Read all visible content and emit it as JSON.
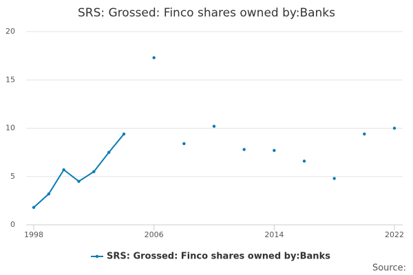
{
  "chart_data": {
    "type": "line",
    "title": "SRS: Grossed: Finco shares owned by:Banks",
    "x": [
      1998,
      1999,
      2000,
      2001,
      2002,
      2003,
      2004,
      2005,
      2006,
      2007,
      2008,
      2009,
      2010,
      2011,
      2012,
      2013,
      2014,
      2015,
      2016,
      2017,
      2018,
      2019,
      2020,
      2021,
      2022
    ],
    "series": [
      {
        "name": "SRS: Grossed: Finco shares owned by:Banks",
        "color": "#0a7bb5",
        "values": [
          1.8,
          3.2,
          5.7,
          4.5,
          5.5,
          7.5,
          9.4,
          null,
          17.3,
          null,
          8.4,
          null,
          10.2,
          null,
          7.8,
          null,
          7.7,
          null,
          6.6,
          null,
          4.8,
          null,
          9.4,
          null,
          10.0
        ]
      }
    ],
    "xlim": [
      1998,
      2022
    ],
    "xticks": [
      1998,
      2006,
      2014,
      2022
    ],
    "ylim": [
      0,
      20
    ],
    "yticks": [
      0,
      5,
      10,
      15,
      20
    ],
    "grid": true,
    "legend": "bottom",
    "source": "Source:"
  }
}
